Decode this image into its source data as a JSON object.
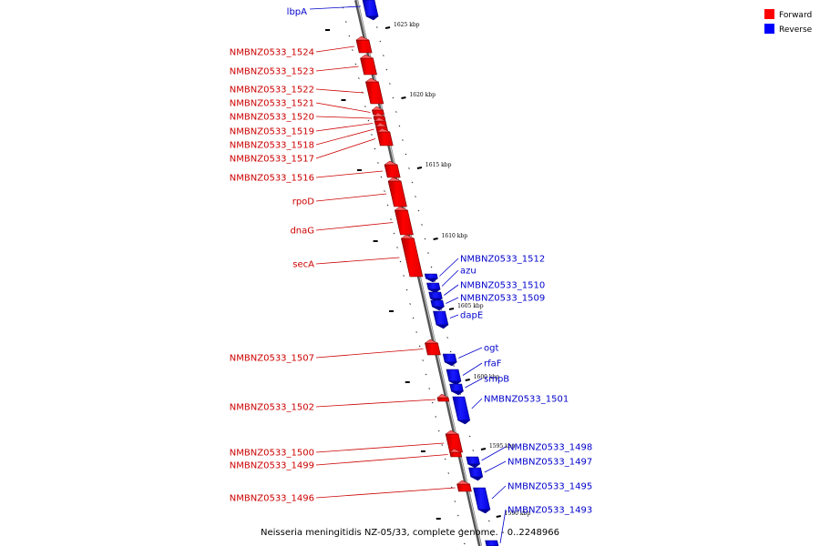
{
  "title": "Neisseria meningitidis NZ-05/33, complete genome. - 0..2248966",
  "colors": {
    "forward": "#ff0000",
    "reverse": "#0000ff",
    "axis": "#888888"
  },
  "legend": [
    {
      "label": "Forward",
      "color": "#ff0000"
    },
    {
      "label": "Reverse",
      "color": "#0000ff"
    }
  ],
  "ticks": [
    "1625 kbp",
    "1620 kbp",
    "1615 kbp",
    "1610 kbp",
    "1605 kbp",
    "1600 kbp",
    "1595 kbp",
    "1590 kbp"
  ],
  "forward_genes": [
    "NMBNZ0533_1524",
    "NMBNZ0533_1523",
    "NMBNZ0533_1522",
    "NMBNZ0533_1521",
    "NMBNZ0533_1520",
    "NMBNZ0533_1519",
    "NMBNZ0533_1518",
    "NMBNZ0533_1517",
    "NMBNZ0533_1516",
    "rpoD",
    "dnaG",
    "secA",
    "NMBNZ0533_1507",
    "NMBNZ0533_1502",
    "NMBNZ0533_1500",
    "NMBNZ0533_1499",
    "NMBNZ0533_1496"
  ],
  "reverse_genes": [
    "lbpA",
    "NMBNZ0533_1512",
    "azu",
    "NMBNZ0533_1510",
    "NMBNZ0533_1509",
    "dapE",
    "ogt",
    "rfaF",
    "smpB",
    "NMBNZ0533_1501",
    "NMBNZ0533_1498",
    "NMBNZ0533_1497",
    "NMBNZ0533_1495",
    "NMBNZ0533_1493"
  ]
}
